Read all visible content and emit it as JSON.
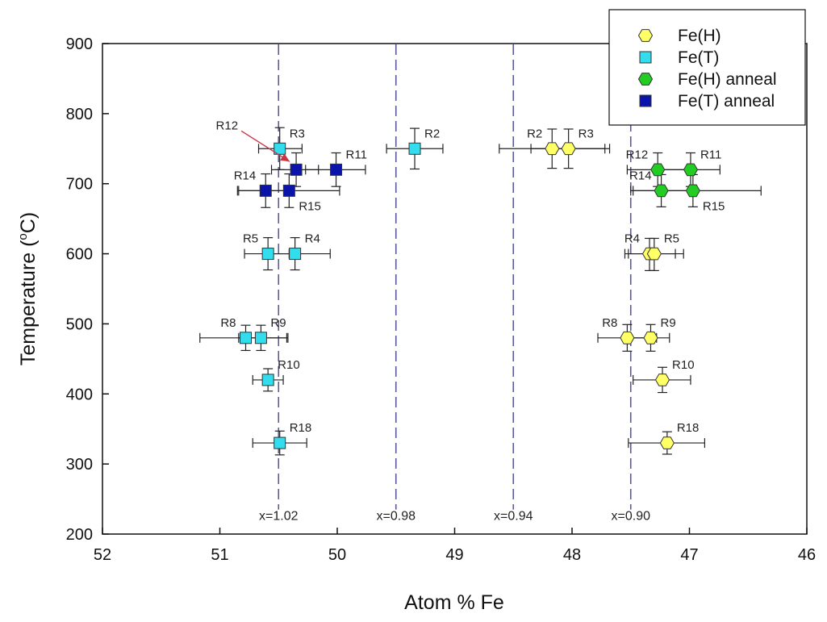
{
  "chart_data": {
    "type": "scatter",
    "title": "",
    "xlabel": "Atom % Fe",
    "ylabel": "Temperature (°C)",
    "ylabel_parts": {
      "pre": "Temperature (",
      "sup": "o",
      "post": "C)"
    },
    "xlim": [
      52,
      46
    ],
    "ylim": [
      200,
      900
    ],
    "x_reversed": true,
    "x_ticks": [
      52,
      51,
      50,
      49,
      48,
      47,
      46
    ],
    "y_ticks": [
      200,
      300,
      400,
      500,
      600,
      700,
      800,
      900
    ],
    "grid": false,
    "legend_position": "top-right",
    "colors": {
      "fe_h": "#ffff66",
      "fe_t": "#33ddee",
      "fe_h_anneal": "#22cc22",
      "fe_t_anneal": "#0a14aa",
      "ref_line": "#5a5a9a",
      "arrow": "#cc3344"
    },
    "reference_lines": [
      {
        "x": 50.5,
        "label": "x=1.02"
      },
      {
        "x": 49.5,
        "label": "x=0.98"
      },
      {
        "x": 48.5,
        "label": "x=0.94"
      },
      {
        "x": 47.5,
        "label": "x=0.90"
      }
    ],
    "series": [
      {
        "name": "Fe(H)",
        "marker": "hexagon",
        "color_key": "fe_h",
        "points": [
          {
            "label": "R2",
            "x": 48.17,
            "y": 750,
            "xerr": [
              48.62,
              47.72
            ],
            "yerr": [
              722,
              778
            ]
          },
          {
            "label": "R3",
            "x": 48.03,
            "y": 750,
            "xerr": [
              48.35,
              47.68
            ],
            "yerr": [
              722,
              778
            ]
          },
          {
            "label": "R4",
            "x": 47.34,
            "y": 600,
            "xerr": [
              47.55,
              47.12
            ],
            "yerr": [
              576,
              622
            ]
          },
          {
            "label": "R5",
            "x": 47.3,
            "y": 600,
            "xerr": [
              47.52,
              47.05
            ],
            "yerr": [
              576,
              622
            ]
          },
          {
            "label": "R8",
            "x": 47.53,
            "y": 480,
            "xerr": [
              47.78,
              47.28
            ],
            "yerr": [
              461,
              499
            ]
          },
          {
            "label": "R9",
            "x": 47.33,
            "y": 480,
            "xerr": [
              47.52,
              47.17
            ],
            "yerr": [
              461,
              499
            ]
          },
          {
            "label": "R10",
            "x": 47.23,
            "y": 420,
            "xerr": [
              47.48,
              46.99
            ],
            "yerr": [
              402,
              438
            ]
          },
          {
            "label": "R18",
            "x": 47.19,
            "y": 330,
            "xerr": [
              47.52,
              46.87
            ],
            "yerr": [
              314,
              346
            ]
          }
        ]
      },
      {
        "name": "Fe(T)",
        "marker": "square",
        "color_key": "fe_t",
        "points": [
          {
            "label": "R3",
            "x": 50.49,
            "y": 750,
            "xerr": [
              50.67,
              50.3
            ],
            "yerr": [
              720,
              780
            ]
          },
          {
            "label": "R2",
            "x": 49.34,
            "y": 750,
            "xerr": [
              49.58,
              49.1
            ],
            "yerr": [
              721,
              779
            ]
          },
          {
            "label": "R5",
            "x": 50.59,
            "y": 600,
            "xerr": [
              50.79,
              50.41
            ],
            "yerr": [
              577,
              623
            ]
          },
          {
            "label": "R4",
            "x": 50.36,
            "y": 600,
            "xerr": [
              50.62,
              50.06
            ],
            "yerr": [
              577,
              623
            ]
          },
          {
            "label": "R8",
            "x": 50.78,
            "y": 480,
            "xerr": [
              51.17,
              50.43
            ],
            "yerr": [
              462,
              498
            ]
          },
          {
            "label": "R9",
            "x": 50.65,
            "y": 480,
            "xerr": [
              50.84,
              50.42
            ],
            "yerr": [
              462,
              498
            ]
          },
          {
            "label": "R10",
            "x": 50.59,
            "y": 420,
            "xerr": [
              50.72,
              50.46
            ],
            "yerr": [
              404,
              436
            ]
          },
          {
            "label": "R18",
            "x": 50.49,
            "y": 330,
            "xerr": [
              50.72,
              50.26
            ],
            "yerr": [
              313,
              347
            ]
          }
        ]
      },
      {
        "name": "Fe(H) anneal",
        "marker": "hexagon",
        "color_key": "fe_h_anneal",
        "points": [
          {
            "label": "R12",
            "x": 47.27,
            "y": 720,
            "xerr": [
              47.53,
              47.02
            ],
            "yerr": [
              696,
              744
            ]
          },
          {
            "label": "R11",
            "x": 46.99,
            "y": 720,
            "xerr": [
              47.24,
              46.74
            ],
            "yerr": [
              696,
              744
            ]
          },
          {
            "label": "R14",
            "x": 47.24,
            "y": 690,
            "xerr": [
              47.5,
              46.98
            ],
            "yerr": [
              667,
              713
            ]
          },
          {
            "label": "R15",
            "x": 46.97,
            "y": 690,
            "xerr": [
              47.48,
              46.39
            ],
            "yerr": [
              667,
              713
            ]
          }
        ]
      },
      {
        "name": "Fe(T) anneal",
        "marker": "square",
        "color_key": "fe_t_anneal",
        "points": [
          {
            "label": "R12",
            "x": 50.35,
            "y": 720,
            "xerr": [
              50.56,
              50.16
            ],
            "yerr": [
              696,
              744
            ]
          },
          {
            "label": "R11",
            "x": 50.01,
            "y": 720,
            "xerr": [
              50.27,
              49.76
            ],
            "yerr": [
              696,
              744
            ]
          },
          {
            "label": "R14",
            "x": 50.61,
            "y": 690,
            "xerr": [
              50.85,
              50.37
            ],
            "yerr": [
              666,
              714
            ]
          },
          {
            "label": "R15",
            "x": 50.41,
            "y": 690,
            "xerr": [
              50.84,
              49.98
            ],
            "yerr": [
              666,
              714
            ]
          }
        ]
      }
    ],
    "annotations": {
      "point_labels": [
        {
          "text": "R3",
          "series": "Fe(T)",
          "point": "R3",
          "anchor": "right-above"
        },
        {
          "text": "R2",
          "series": "Fe(T)",
          "point": "R2",
          "anchor": "right-above"
        },
        {
          "text": "R12",
          "series": "Fe(T) anneal",
          "point": "R12",
          "anchor": "arrow"
        },
        {
          "text": "R11",
          "series": "Fe(T) anneal",
          "point": "R11",
          "anchor": "right-above"
        },
        {
          "text": "R14",
          "series": "Fe(T) anneal",
          "point": "R14",
          "anchor": "left-above"
        },
        {
          "text": "R15",
          "series": "Fe(T) anneal",
          "point": "R15",
          "anchor": "right-below"
        },
        {
          "text": "R5",
          "series": "Fe(T)",
          "point": "R5",
          "anchor": "left-above"
        },
        {
          "text": "R4",
          "series": "Fe(T)",
          "point": "R4",
          "anchor": "right-above"
        },
        {
          "text": "R8",
          "series": "Fe(T)",
          "point": "R8",
          "anchor": "left-above"
        },
        {
          "text": "R9",
          "series": "Fe(T)",
          "point": "R9",
          "anchor": "right-above"
        },
        {
          "text": "R10",
          "series": "Fe(T)",
          "point": "R10",
          "anchor": "right-above"
        },
        {
          "text": "R18",
          "series": "Fe(T)",
          "point": "R18",
          "anchor": "right-above"
        },
        {
          "text": "R2",
          "series": "Fe(H)",
          "point": "R2",
          "anchor": "left-above"
        },
        {
          "text": "R3",
          "series": "Fe(H)",
          "point": "R3",
          "anchor": "right-above"
        },
        {
          "text": "R12",
          "series": "Fe(H) anneal",
          "point": "R12",
          "anchor": "left-above"
        },
        {
          "text": "R11",
          "series": "Fe(H) anneal",
          "point": "R11",
          "anchor": "right-above"
        },
        {
          "text": "R14",
          "series": "Fe(H) anneal",
          "point": "R14",
          "anchor": "left-above"
        },
        {
          "text": "R15",
          "series": "Fe(H) anneal",
          "point": "R15",
          "anchor": "right-below"
        },
        {
          "text": "R4",
          "series": "Fe(H)",
          "point": "R4",
          "anchor": "left-above"
        },
        {
          "text": "R5",
          "series": "Fe(H)",
          "point": "R5",
          "anchor": "right-above"
        },
        {
          "text": "R8",
          "series": "Fe(H)",
          "point": "R8",
          "anchor": "left-above"
        },
        {
          "text": "R9",
          "series": "Fe(H)",
          "point": "R9",
          "anchor": "right-above"
        },
        {
          "text": "R10",
          "series": "Fe(H)",
          "point": "R10",
          "anchor": "right-above"
        },
        {
          "text": "R18",
          "series": "Fe(H)",
          "point": "R18",
          "anchor": "right-above"
        }
      ]
    }
  }
}
